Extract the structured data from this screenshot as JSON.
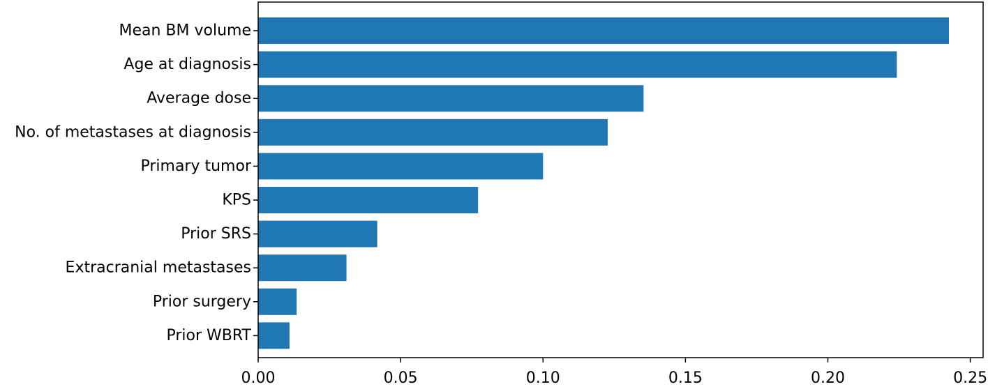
{
  "chart_data": {
    "type": "bar",
    "orientation": "horizontal",
    "title": "",
    "xlabel": "",
    "ylabel": "",
    "categories": [
      "Mean BM volume",
      "Age at diagnosis",
      "Average dose",
      "No. of metastases at diagnosis",
      "Primary tumor",
      "KPS",
      "Prior SRS",
      "Extracranial metastases",
      "Prior surgery",
      "Prior WBRT"
    ],
    "values": [
      0.2425,
      0.2242,
      0.1353,
      0.1227,
      0.1,
      0.0772,
      0.0418,
      0.031,
      0.0135,
      0.011
    ],
    "xlim": [
      0,
      0.2545
    ],
    "xticks": [
      0.0,
      0.05,
      0.1,
      0.15,
      0.2,
      0.25
    ],
    "xtick_labels": [
      "0.00",
      "0.05",
      "0.10",
      "0.15",
      "0.20",
      "0.25"
    ],
    "bar_color": "#1f77b4",
    "grid": false,
    "legend": "none"
  }
}
